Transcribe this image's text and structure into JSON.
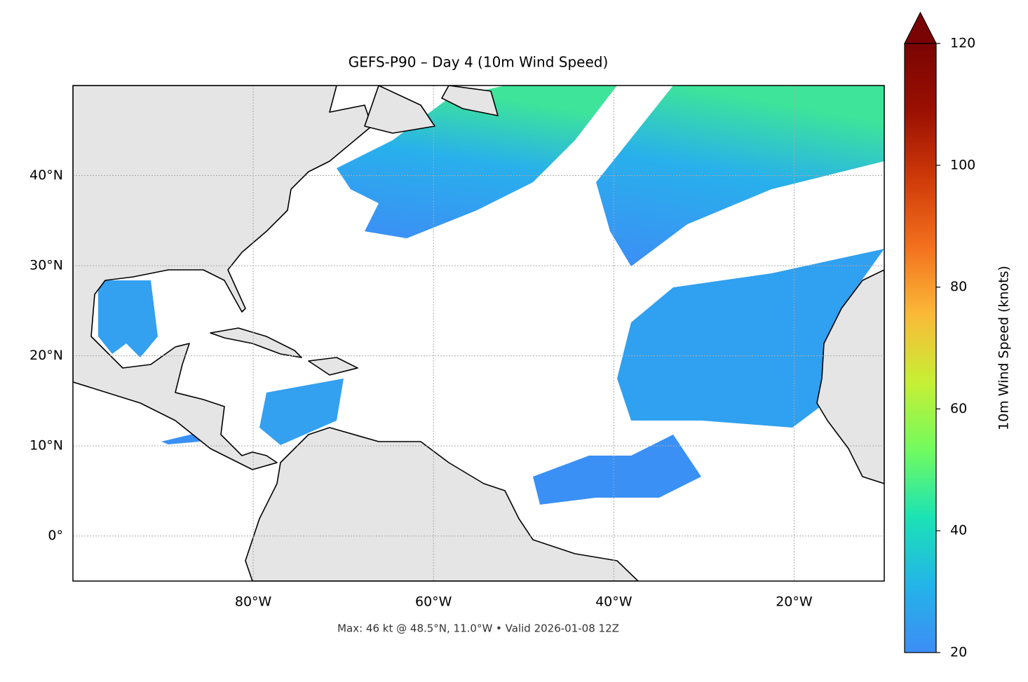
{
  "map": {
    "title": "GEFS-P90 – Day 4 (10m Wind Speed)",
    "xlim": [
      -100,
      -10
    ],
    "ylim": [
      -5,
      50
    ],
    "xticks": [
      {
        "value": -80,
        "label": "80°W"
      },
      {
        "value": -60,
        "label": "60°W"
      },
      {
        "value": -40,
        "label": "40°W"
      },
      {
        "value": -20,
        "label": "20°W"
      }
    ],
    "yticks": [
      {
        "value": 0,
        "label": "0°"
      },
      {
        "value": 10,
        "label": "10°N"
      },
      {
        "value": 20,
        "label": "20°N"
      },
      {
        "value": 30,
        "label": "30°N"
      },
      {
        "value": 40,
        "label": "40°N"
      }
    ],
    "grid": true,
    "colorbar": {
      "label": "10m Wind Speed (knots)",
      "lim": [
        20,
        120
      ],
      "ticks": [
        20,
        40,
        60,
        80,
        100,
        120
      ],
      "extend": "max",
      "colors": [
        "#3d8df5",
        "#23b4e8",
        "#1be3b5",
        "#72fb5e",
        "#c7ef34",
        "#fbb938",
        "#f3701d",
        "#cf3a09",
        "#9a1002",
        "#7a0403"
      ]
    },
    "footnote": "Max: 46 kt @ 48.5°N, 11.0°W • Valid 2026-01-08 12Z"
  }
}
